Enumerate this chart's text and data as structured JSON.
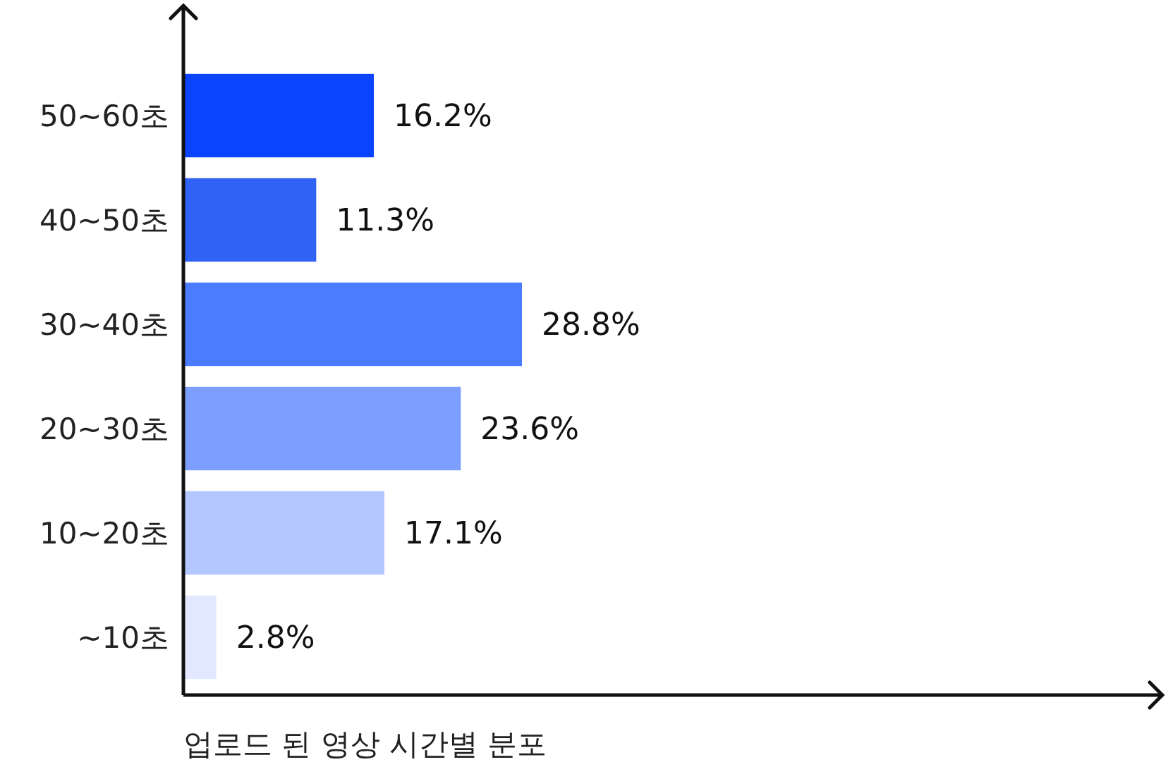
{
  "chart_data": {
    "type": "bar",
    "orientation": "horizontal",
    "xlabel": "업로드 된 영상 시간별 분포",
    "categories": [
      "50~60초",
      "40~50초",
      "30~40초",
      "20~30초",
      "10~20초",
      "~10초"
    ],
    "values": [
      16.2,
      11.3,
      28.8,
      23.6,
      17.1,
      2.8
    ],
    "value_labels": [
      "16.2%",
      "11.3%",
      "28.8%",
      "23.6%",
      "17.1%",
      "2.8%"
    ],
    "colors": [
      "#0a44ff",
      "#2f62f5",
      "#4b7bff",
      "#7c9eff",
      "#b3c6ff",
      "#e1e8ff"
    ]
  }
}
